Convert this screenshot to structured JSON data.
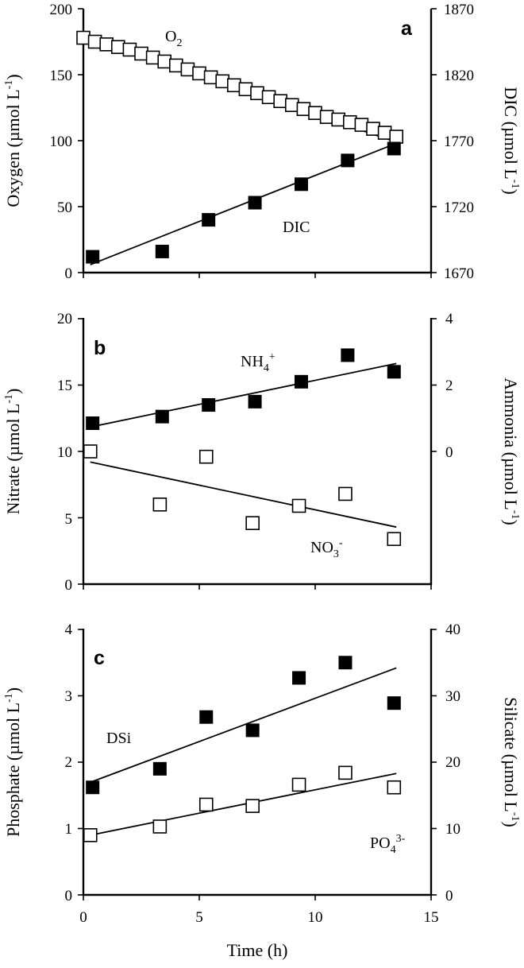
{
  "chart_data": [
    {
      "type": "scatter",
      "panel_label": "a",
      "xlim": [
        0,
        15
      ],
      "ylabel_left": "Oxygen (µmol L⁻¹)",
      "ylim_left": [
        0,
        200
      ],
      "yticks_left": [
        0,
        50,
        100,
        150,
        200
      ],
      "ylabel_right": "DIC (µmol L⁻¹)",
      "ylim_right": [
        1670,
        1870
      ],
      "yticks_right": [
        1670,
        1720,
        1770,
        1820,
        1870
      ],
      "show_xtick_labels": false,
      "series": [
        {
          "name": "O2",
          "axis": "left",
          "marker": "open-square",
          "x": [
            0.0,
            0.5,
            1.0,
            1.5,
            2.0,
            2.5,
            3.0,
            3.5,
            4.0,
            4.5,
            5.0,
            5.5,
            6.0,
            6.5,
            7.0,
            7.5,
            8.0,
            8.5,
            9.0,
            9.5,
            10.0,
            10.5,
            11.0,
            11.5,
            12.0,
            12.5,
            13.0,
            13.5
          ],
          "y": [
            178,
            175,
            173,
            171,
            169,
            166,
            163,
            160,
            157,
            154,
            151,
            148,
            145,
            142,
            139,
            136,
            133,
            130,
            127,
            124,
            121,
            118,
            116,
            114,
            112,
            109,
            106,
            103
          ],
          "fit": {
            "x": [
              0,
              13.5
            ],
            "y": [
              178,
              99
            ]
          }
        },
        {
          "name": "DIC",
          "axis": "right",
          "marker": "filled-square",
          "x": [
            0.4,
            3.4,
            5.4,
            7.4,
            9.4,
            11.4,
            13.4
          ],
          "y": [
            1682,
            1686,
            1710,
            1723,
            1737,
            1755,
            1764
          ],
          "fit": {
            "x": [
              0.3,
              13.5
            ],
            "y": [
              1676,
              1768
            ]
          }
        }
      ]
    },
    {
      "type": "scatter",
      "panel_label": "b",
      "xlim": [
        0,
        15
      ],
      "ylabel_left": "Nitrate (µmol L⁻¹)",
      "ylim_left": [
        0,
        20
      ],
      "yticks_left": [
        0,
        5,
        10,
        15,
        20
      ],
      "ylabel_right": "Ammonia (µmol L⁻¹)",
      "ylim_right": [
        -4,
        4
      ],
      "yticks_right": [
        0,
        2,
        4
      ],
      "show_xtick_labels": false,
      "series": [
        {
          "name": "NH4+",
          "axis": "right",
          "marker": "filled-square",
          "x": [
            0.4,
            3.4,
            5.4,
            7.4,
            9.4,
            11.4,
            13.4
          ],
          "y": [
            0.85,
            1.05,
            1.4,
            1.5,
            2.1,
            2.9,
            2.4
          ],
          "fit": {
            "x": [
              0.4,
              13.5
            ],
            "y": [
              0.75,
              2.65
            ]
          }
        },
        {
          "name": "NO3-",
          "axis": "left",
          "marker": "open-square",
          "x": [
            0.3,
            3.3,
            5.3,
            7.3,
            9.3,
            11.3,
            13.4
          ],
          "y": [
            10.0,
            6.0,
            9.6,
            4.6,
            5.9,
            6.8,
            3.4
          ],
          "fit": {
            "x": [
              0.3,
              13.5
            ],
            "y": [
              9.2,
              4.3
            ]
          }
        }
      ]
    },
    {
      "type": "scatter",
      "panel_label": "c",
      "xlim": [
        0,
        15
      ],
      "xlabel": "Time (h)",
      "xticks": [
        0,
        5,
        10,
        15
      ],
      "ylabel_left": "Phosphate (µmol L⁻¹)",
      "ylim_left": [
        0,
        4
      ],
      "yticks_left": [
        0,
        1,
        2,
        3,
        4
      ],
      "ylabel_right": "Silicate (µmol L⁻¹)",
      "ylim_right": [
        0,
        40
      ],
      "yticks_right": [
        0,
        10,
        20,
        30,
        40
      ],
      "show_xtick_labels": true,
      "series": [
        {
          "name": "DSi",
          "axis": "right",
          "marker": "filled-square",
          "x": [
            0.4,
            3.3,
            5.3,
            7.3,
            9.3,
            11.3,
            13.4
          ],
          "y": [
            16.2,
            19.0,
            26.8,
            24.8,
            32.7,
            35.0,
            28.9
          ],
          "fit": {
            "x": [
              0.4,
              13.5
            ],
            "y": [
              17.1,
              34.2
            ]
          }
        },
        {
          "name": "PO43-",
          "axis": "left",
          "marker": "open-square",
          "x": [
            0.3,
            3.3,
            5.3,
            7.3,
            9.3,
            11.3,
            13.4
          ],
          "y": [
            0.9,
            1.03,
            1.36,
            1.34,
            1.66,
            1.84,
            1.62
          ],
          "fit": {
            "x": [
              0.3,
              13.5
            ],
            "y": [
              0.9,
              1.83
            ]
          }
        }
      ]
    }
  ],
  "labels": {
    "a": {
      "letter": "a",
      "left_tick_labels": [
        "0",
        "50",
        "100",
        "150",
        "200"
      ],
      "right_tick_labels": [
        "1670",
        "1720",
        "1770",
        "1820",
        "1870"
      ],
      "left_axis_title": "Oxygen (µmol L",
      "left_axis_title_sup": "-1",
      "right_axis_title": "DIC (µmol L",
      "right_axis_title_sup": "-1",
      "series_1_main": "O",
      "series_1_sub": "2",
      "series_2_main": "DIC"
    },
    "b": {
      "letter": "b",
      "left_tick_labels": [
        "0",
        "5",
        "10",
        "15",
        "20"
      ],
      "right_tick_labels": [
        "0",
        "2",
        "4"
      ],
      "left_axis_title": "Nitrate (µmol L",
      "left_axis_title_sup": "-1",
      "right_axis_title": "Ammonia (µmol L",
      "right_axis_title_sup": "-1",
      "series_1_main": "NH",
      "series_1_sub": "4",
      "series_1_sup": "+",
      "series_2_main": "NO",
      "series_2_sub": "3",
      "series_2_sup": "-"
    },
    "c": {
      "letter": "c",
      "left_tick_labels": [
        "0",
        "1",
        "2",
        "3",
        "4"
      ],
      "right_tick_labels": [
        "0",
        "10",
        "20",
        "30",
        "40"
      ],
      "x_tick_labels": [
        "0",
        "5",
        "10",
        "15"
      ],
      "x_axis_title": "Time (h)",
      "left_axis_title": "Phosphate (µmol L",
      "left_axis_title_sup": "-1",
      "right_axis_title": "Silicate (µmol L",
      "right_axis_title_sup": "-1",
      "series_1_main": "DSi",
      "series_2_main": "PO",
      "series_2_sub": "4",
      "series_2_sup": "3-"
    }
  }
}
